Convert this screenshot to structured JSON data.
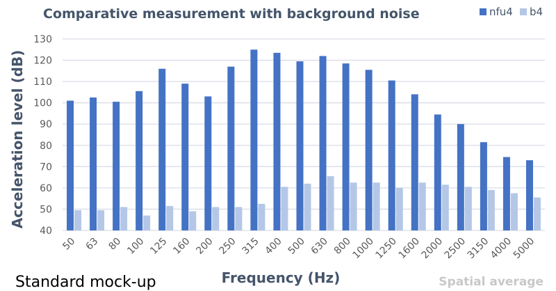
{
  "chart_data": {
    "type": "bar",
    "title": "Comparative measurement with background noise",
    "xlabel": "Frequency (Hz)",
    "ylabel": "Acceleration level (dB)",
    "ylim": [
      40,
      130
    ],
    "yticks": [
      40,
      50,
      60,
      70,
      80,
      90,
      100,
      110,
      120,
      130
    ],
    "grid": true,
    "legend_position": "top-right",
    "categories": [
      "50",
      "63",
      "80",
      "100",
      "125",
      "160",
      "200",
      "250",
      "315",
      "400",
      "500",
      "630",
      "800",
      "1000",
      "1250",
      "1600",
      "2000",
      "2500",
      "3150",
      "4000",
      "5000"
    ],
    "series": [
      {
        "name": "nfu4",
        "color": "#4472c4",
        "values": [
          101,
          102.5,
          100.5,
          105.5,
          116,
          109,
          103,
          117,
          125,
          123.5,
          119.5,
          122,
          118.5,
          115.5,
          110.5,
          104,
          94.5,
          90,
          81.5,
          74.5,
          73
        ]
      },
      {
        "name": "b4",
        "color": "#b4c7e7",
        "values": [
          49.5,
          49.5,
          51,
          47,
          51.5,
          49,
          51,
          51,
          52.5,
          60.5,
          62,
          65.5,
          62.5,
          62.5,
          60,
          62.5,
          61.5,
          60.5,
          59,
          57.5,
          55.5
        ]
      }
    ]
  },
  "annotations": {
    "left": "Standard mock-up",
    "right": "Spatial average"
  }
}
